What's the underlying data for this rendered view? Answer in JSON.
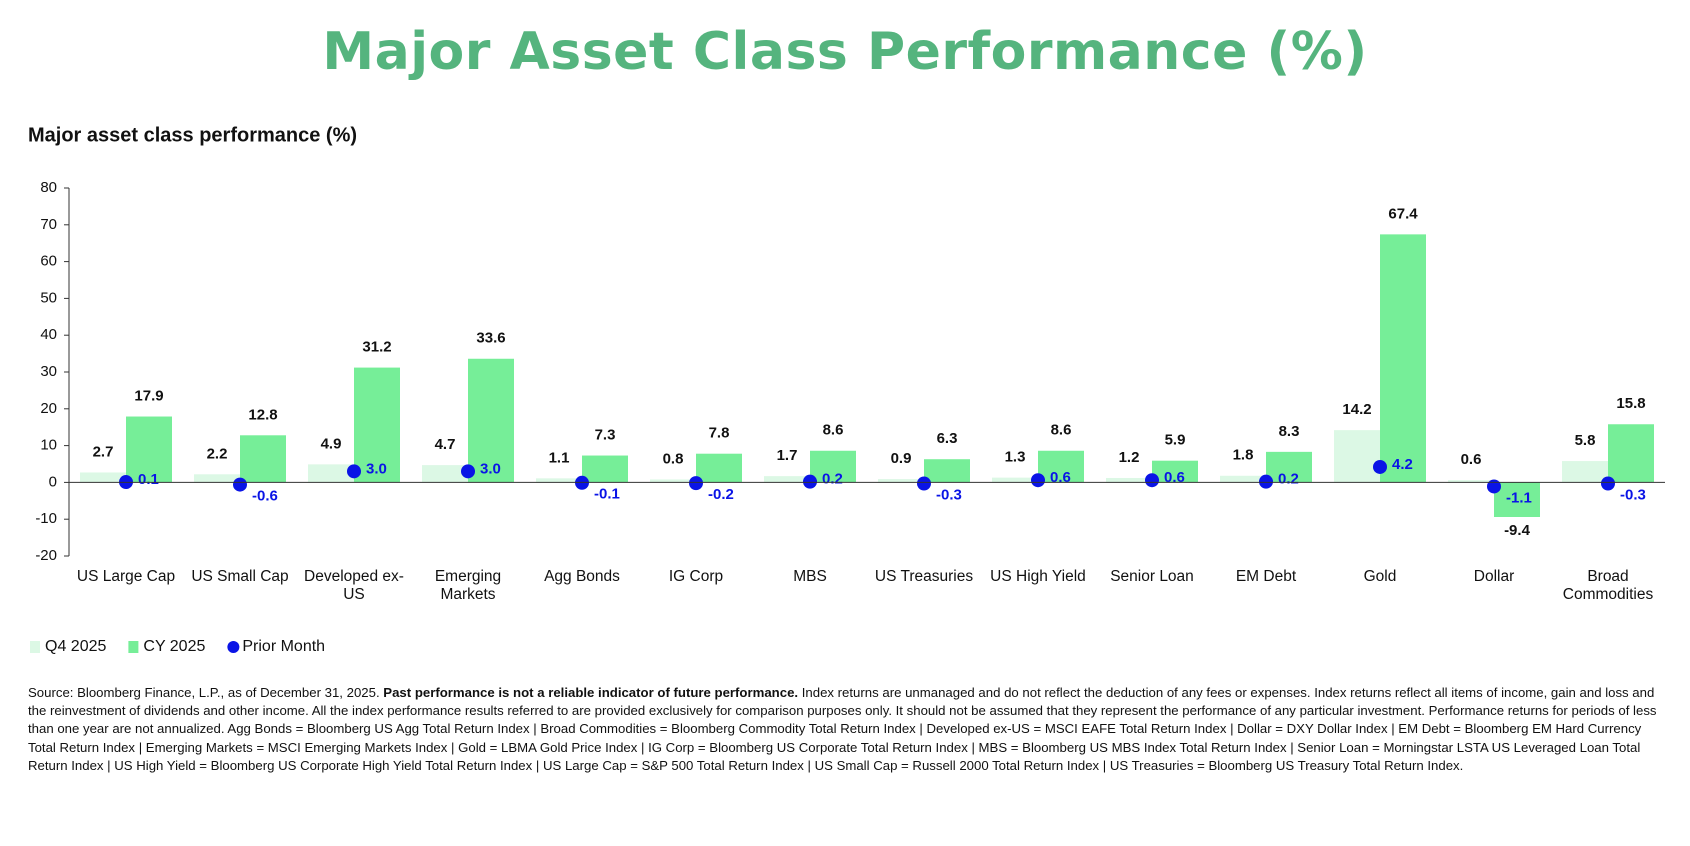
{
  "page_title": "Major Asset Class Performance (%)",
  "chart_data": {
    "type": "bar",
    "title": "Major asset class performance (%)",
    "categories": [
      "US Large Cap",
      "US Small Cap",
      "Developed ex-US",
      "Emerging Markets",
      "Agg Bonds",
      "IG Corp",
      "MBS",
      "US Treasuries",
      "US High Yield",
      "Senior Loan",
      "EM Debt",
      "Gold",
      "Dollar",
      "Broad Commodities"
    ],
    "series": [
      {
        "name": "Q4 2025",
        "color": "#dcf8e5",
        "kind": "bar",
        "values": [
          2.7,
          2.2,
          4.9,
          4.7,
          1.1,
          0.8,
          1.7,
          0.9,
          1.3,
          1.2,
          1.8,
          14.2,
          0.6,
          5.8
        ],
        "value_labels": [
          "2.7",
          "2.2",
          "4.9",
          "4.7",
          "1.1",
          "0.8",
          "1.7",
          "0.9",
          "1.3",
          "1.2",
          "1.8",
          "14.2",
          "0.6",
          "5.8"
        ]
      },
      {
        "name": "CY 2025",
        "color": "#76ee98",
        "kind": "bar",
        "values": [
          17.9,
          12.8,
          31.2,
          33.6,
          7.3,
          7.8,
          8.6,
          6.3,
          8.6,
          5.9,
          8.3,
          67.4,
          -9.4,
          15.8
        ],
        "value_labels": [
          "17.9",
          "12.8",
          "31.2",
          "33.6",
          "7.3",
          "7.8",
          "8.6",
          "6.3",
          "8.6",
          "5.9",
          "8.3",
          "67.4",
          "-9.4",
          "15.8"
        ]
      },
      {
        "name": "Prior Month",
        "color": "#0a14e6",
        "kind": "dot",
        "values": [
          0.1,
          -0.6,
          3.0,
          3.0,
          -0.1,
          -0.2,
          0.2,
          -0.3,
          0.6,
          0.6,
          0.2,
          4.2,
          -1.1,
          -0.3
        ],
        "value_labels": [
          "0.1",
          "-0.6",
          "3.0",
          "3.0",
          "-0.1",
          "-0.2",
          "0.2",
          "-0.3",
          "0.6",
          "0.6",
          "0.2",
          "4.2",
          "-1.1",
          "-0.3"
        ]
      }
    ],
    "ylim": [
      -20,
      80
    ],
    "yticks": [
      -20,
      -10,
      0,
      10,
      20,
      30,
      40,
      50,
      60,
      70,
      80
    ],
    "grid": false
  },
  "source": {
    "prefix": "Source: Bloomberg Finance, L.P., as of December 31, 2025. ",
    "bold": "Past performance is not a reliable indicator of future performance.",
    "rest": " Index returns are unmanaged and do not reflect the deduction of any fees or expenses. Index returns reflect all items of income, gain and loss and the reinvestment of dividends and other income. All the index performance results referred to are provided exclusively for comparison purposes only. It should not be assumed that they represent the performance of any particular investment. Performance returns for periods of less than one year are not annualized. Agg Bonds = Bloomberg US Agg Total Return Index | Broad Commodities = Bloomberg Commodity Total Return Index | Developed ex-US = MSCI EAFE Total Return Index | Dollar = DXY Dollar Index | EM Debt = Bloomberg EM Hard Currency Total Return Index | Emerging Markets = MSCI Emerging Markets Index | Gold = LBMA Gold Price Index | IG Corp = Bloomberg US Corporate Total Return Index | MBS = Bloomberg US MBS Index Total Return Index | Senior Loan = Morningstar LSTA US Leveraged Loan Total Return Index | US High Yield = Bloomberg US Corporate High Yield Total Return Index | US Large Cap = S&P 500 Total Return Index | US Small Cap = Russell 2000 Total Return Index | US Treasuries = Bloomberg US Treasury Total Return Index."
  }
}
